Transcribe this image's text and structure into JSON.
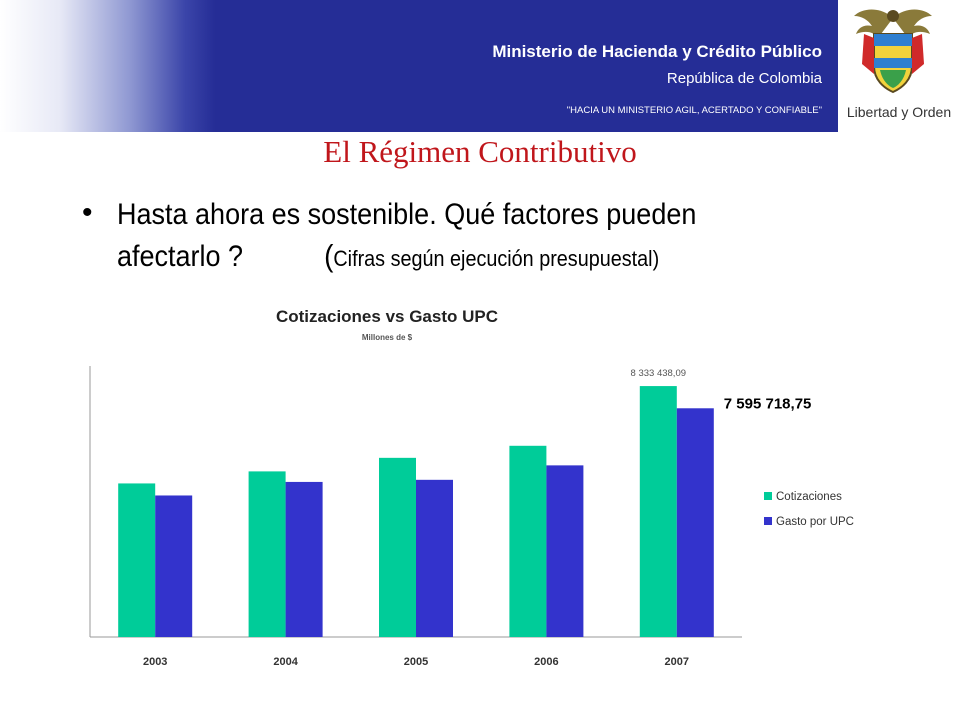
{
  "header": {
    "ministry": "Ministerio de Hacienda y Crédito Público",
    "republic": "República de Colombia",
    "slogan": "\"HACIA UN MINISTERIO AGIL, ACERTADO Y CONFIABLE\"",
    "motto": "Libertad y Orden",
    "background_color": "#252d96"
  },
  "slide": {
    "title": "El Régimen Contributivo",
    "bullet_main_1": "Hasta ahora es sostenible. Qué factores pueden",
    "bullet_main_2": "afectarlo ?",
    "bullet_paren": "(",
    "bullet_note": "Cifras según ejecución presupuestal)"
  },
  "chart_data": {
    "type": "bar",
    "title": "Cotizaciones vs Gasto UPC",
    "subtitle": "Millones de $",
    "xlabel": "",
    "ylabel": "",
    "categories": [
      "2003",
      "2004",
      "2005",
      "2006",
      "2007"
    ],
    "series": [
      {
        "name": "Cotizaciones",
        "color": "#00cc99",
        "values": [
          5100000,
          5500000,
          5950000,
          6350000,
          8333438.09
        ]
      },
      {
        "name": "Gasto por UPC",
        "color": "#3333cc",
        "values": [
          4700000,
          5150000,
          5220000,
          5700000,
          7595718.75
        ]
      }
    ],
    "data_labels": [
      {
        "series": 0,
        "index": 4,
        "text": "8 333 438,09"
      },
      {
        "series": 1,
        "index": 4,
        "text": "7 595 718,75"
      }
    ],
    "ylim": [
      0,
      9000000
    ],
    "grid": false,
    "legend_position": "right"
  }
}
